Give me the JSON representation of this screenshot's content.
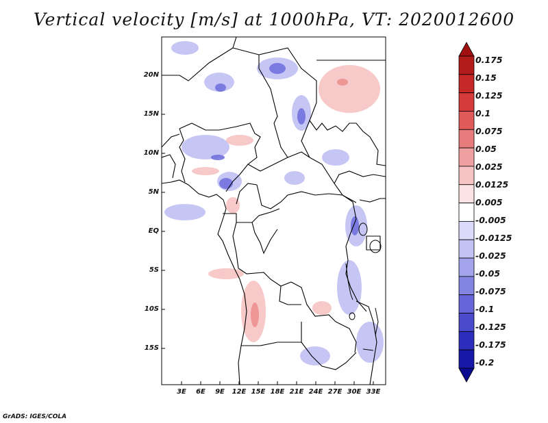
{
  "title": "Vertical velocity [m/s] at 1000hPa, VT: 2020012600",
  "credit": "GrADS: IGES/COLA",
  "map": {
    "region": "Central Africa",
    "lat_labels": [
      "20N",
      "15N",
      "10N",
      "5N",
      "EQ",
      "5S",
      "10S",
      "15S"
    ],
    "lon_labels": [
      "3E",
      "6E",
      "9E",
      "12E",
      "15E",
      "18E",
      "21E",
      "24E",
      "27E",
      "30E",
      "33E"
    ]
  },
  "colorbar": {
    "levels": [
      "0.175",
      "0.15",
      "0.125",
      "0.1",
      "0.075",
      "0.05",
      "0.025",
      "0.0125",
      "0.005",
      "-0.005",
      "-0.0125",
      "-0.025",
      "-0.05",
      "-0.075",
      "-0.1",
      "-0.125",
      "-0.175",
      "-0.2"
    ],
    "colors": [
      "#a01010",
      "#b31b1b",
      "#c62828",
      "#d63b3b",
      "#e05a5a",
      "#e87c7c",
      "#f0a0a0",
      "#f7c4c4",
      "#fce4e4",
      "#ffffff",
      "#dcdcfa",
      "#c2c2f4",
      "#a4a4ec",
      "#8484e2",
      "#6666d8",
      "#4a4acc",
      "#2e2ebd",
      "#1818a8",
      "#0a0a90"
    ]
  },
  "colors": {
    "positive": "#f08080",
    "negative": "#6a6ae0",
    "border": "#000000"
  }
}
